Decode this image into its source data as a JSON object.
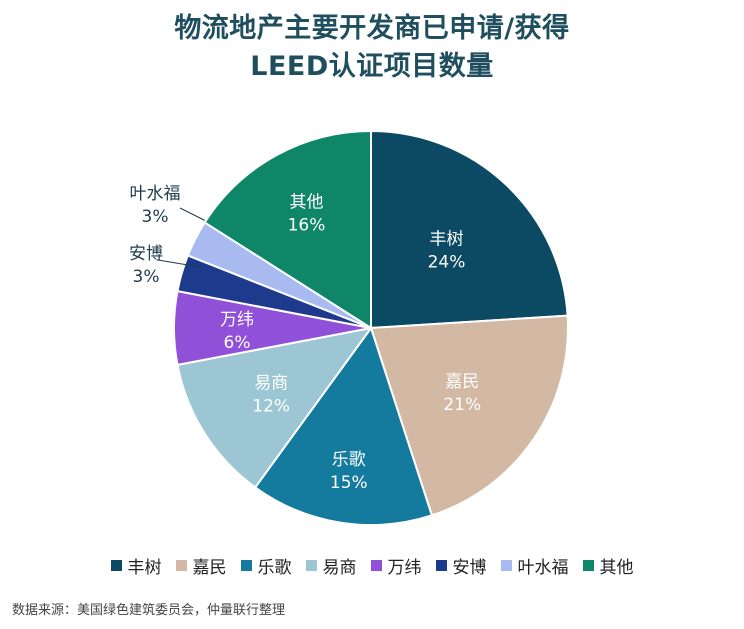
{
  "chart_data": {
    "type": "pie",
    "title_lines": [
      "物流地产主要开发商已申请/获得",
      "LEED认证项目数量"
    ],
    "categories": [
      "丰树",
      "嘉民",
      "乐歌",
      "易商",
      "万纬",
      "安博",
      "叶水福",
      "其他"
    ],
    "values": [
      24,
      21,
      15,
      12,
      6,
      3,
      3,
      16
    ],
    "value_labels": [
      "24%",
      "21%",
      "15%",
      "12%",
      "6%",
      "3%",
      "3%",
      "16%"
    ],
    "colors": [
      "#0b4a62",
      "#d3b9a4",
      "#157b9e",
      "#9cc6d4",
      "#9050d8",
      "#1e3a8c",
      "#a9baf0",
      "#0f8668"
    ],
    "label_colors": [
      "#ffffff",
      "#ffffff",
      "#ffffff",
      "#ffffff",
      "#ffffff",
      "#1f3b4d",
      "#1f3b4d",
      "#ffffff"
    ],
    "legend_position": "bottom",
    "source": "数据来源：美国绿色建筑委员会，仲量联行整理"
  }
}
